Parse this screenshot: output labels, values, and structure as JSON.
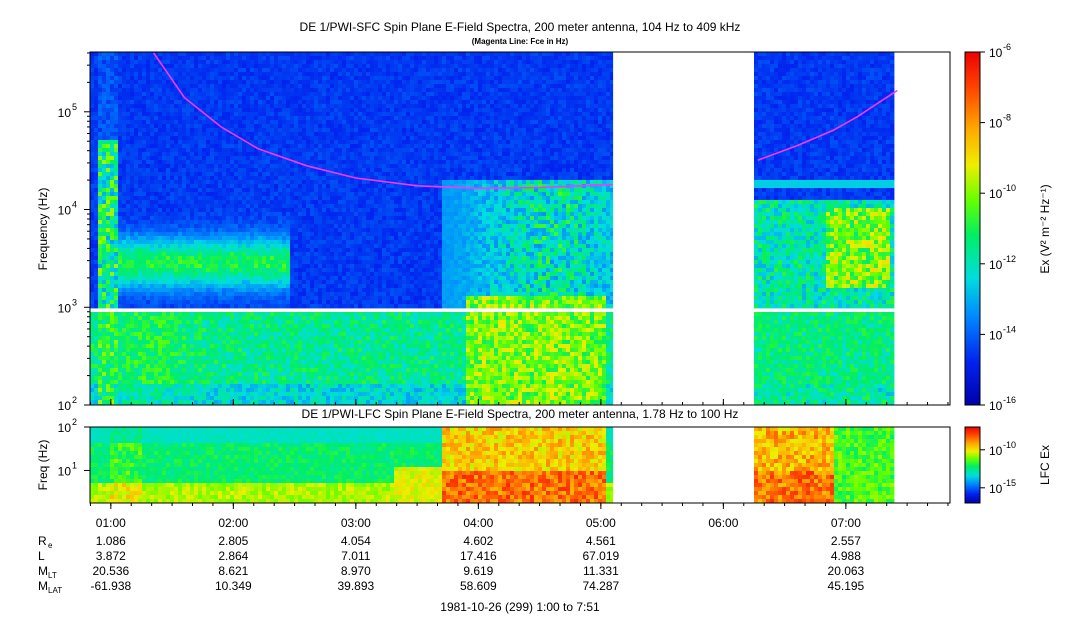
{
  "chart_data": [
    {
      "type": "heatmap",
      "title": "DE 1/PWI-SFC  Spin Plane E-Field Spectra, 200 meter antenna, 104 Hz to 409 kHz",
      "subtitle": "(Magenta Line: Fce in Hz)",
      "ylabel": "Frequency (Hz)",
      "yscale": "log",
      "ylim": [
        100,
        409000
      ],
      "yticks": [
        {
          "value": 100,
          "base": "10",
          "exp": "2"
        },
        {
          "value": 1000,
          "base": "10",
          "exp": "3"
        },
        {
          "value": 10000,
          "base": "10",
          "exp": "4"
        },
        {
          "value": 100000,
          "base": "10",
          "exp": "5"
        }
      ],
      "colorbar": {
        "label": "Ex (V² m⁻² Hz⁻¹)",
        "scale": "log",
        "range": [
          1e-16,
          1e-06
        ],
        "ticks": [
          {
            "value": 1e-06,
            "base": "10",
            "exp": "-6"
          },
          {
            "value": 1e-08,
            "base": "10",
            "exp": "-8"
          },
          {
            "value": 1e-10,
            "base": "10",
            "exp": "-10"
          },
          {
            "value": 1e-12,
            "base": "10",
            "exp": "-12"
          },
          {
            "value": 1e-14,
            "base": "10",
            "exp": "-14"
          },
          {
            "value": 1e-16,
            "base": "10",
            "exp": "-16"
          }
        ]
      },
      "data_gaps_hours": [
        [
          5.1,
          6.25
        ],
        [
          7.4,
          7.85
        ]
      ],
      "fce_line": {
        "color": "#ff33ff",
        "segments": [
          {
            "t": [
              1.35,
              1.6,
              1.9,
              2.2,
              2.6,
              3.0,
              3.5,
              4.0,
              4.5,
              5.1
            ],
            "f": [
              400000,
              140000,
              70000,
              42000,
              28000,
              21000,
              17500,
              16500,
              16800,
              18000
            ]
          },
          {
            "t": [
              6.28,
              6.6,
              6.9,
              7.1,
              7.25,
              7.42
            ],
            "f": [
              32000,
              45000,
              65000,
              90000,
              120000,
              165000
            ]
          }
        ]
      }
    },
    {
      "type": "heatmap",
      "title": "DE 1/PWI-LFC  Spin Plane E-Field Spectra, 200 meter antenna, 1.78 Hz to 100 Hz",
      "ylabel": "Freq (Hz)",
      "yscale": "log",
      "ylim": [
        1.78,
        100
      ],
      "yticks": [
        {
          "value": 10,
          "base": "10",
          "exp": "1"
        },
        {
          "value": 100,
          "base": "10",
          "exp": "2"
        }
      ],
      "colorbar": {
        "label": "LFC Ex",
        "scale": "log",
        "range": [
          1e-17,
          1e-07
        ],
        "ticks": [
          {
            "value": 1e-10,
            "base": "10",
            "exp": "-10"
          },
          {
            "value": 1e-15,
            "base": "10",
            "exp": "-15"
          }
        ]
      },
      "data_gaps_hours": [
        [
          5.1,
          6.25
        ],
        [
          7.4,
          7.85
        ]
      ]
    }
  ],
  "xaxis": {
    "range_hours": [
      0.83,
      7.85
    ],
    "ticks": [
      {
        "hour": 1,
        "label": "01:00"
      },
      {
        "hour": 2,
        "label": "02:00"
      },
      {
        "hour": 3,
        "label": "03:00"
      },
      {
        "hour": 4,
        "label": "04:00"
      },
      {
        "hour": 5,
        "label": "05:00"
      },
      {
        "hour": 6,
        "label": "06:00"
      },
      {
        "hour": 7,
        "label": "07:00"
      }
    ],
    "footer": "1981-10-26 (299) 1:00 to 7:51"
  },
  "ephemeris": [
    {
      "label": "R",
      "sub": "e",
      "values": [
        "1.086",
        "2.805",
        "4.054",
        "4.602",
        "4.561",
        "",
        "2.557"
      ]
    },
    {
      "label": "L",
      "sub": "",
      "values": [
        "3.872",
        "2.864",
        "7.011",
        "17.416",
        "67.019",
        "",
        "4.988"
      ]
    },
    {
      "label": "M",
      "sub": "LT",
      "values": [
        "20.536",
        "8.621",
        "8.970",
        "9.619",
        "11.331",
        "",
        "20.063"
      ]
    },
    {
      "label": "M",
      "sub": "LAT",
      "values": [
        "-61.938",
        "10.349",
        "39.893",
        "58.609",
        "74.287",
        "",
        "45.195"
      ]
    }
  ]
}
